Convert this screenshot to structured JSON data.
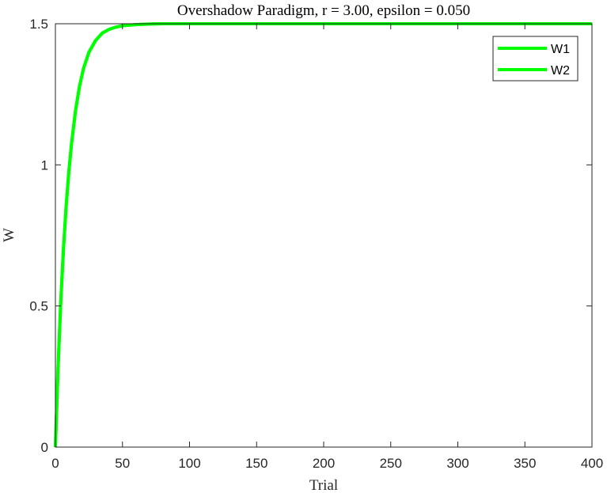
{
  "chart_data": {
    "type": "line",
    "title": "Overshadow Paradigm, r = 3.00, epsilon = 0.050",
    "xlabel": "Trial",
    "ylabel": "W",
    "xlim": [
      0,
      400
    ],
    "ylim": [
      0,
      1.5
    ],
    "x_ticks": [
      0,
      50,
      100,
      150,
      200,
      250,
      300,
      350,
      400
    ],
    "y_ticks": [
      0,
      0.5,
      1,
      1.5
    ],
    "x_tick_labels": [
      "0",
      "50",
      "100",
      "150",
      "200",
      "250",
      "300",
      "350",
      "400"
    ],
    "y_tick_labels": [
      "0",
      "0.5",
      "1",
      "1.5"
    ],
    "grid": false,
    "legend_position": "top-right",
    "series": [
      {
        "name": "W1",
        "color": "#00ff00",
        "x": [
          0,
          2,
          4,
          6,
          8,
          10,
          12,
          15,
          18,
          21,
          25,
          30,
          35,
          40,
          45,
          50,
          60,
          70,
          80,
          100,
          150,
          200,
          250,
          300,
          350,
          400
        ],
        "y": [
          0,
          0.285,
          0.515,
          0.702,
          0.853,
          0.975,
          1.074,
          1.192,
          1.279,
          1.342,
          1.399,
          1.441,
          1.467,
          1.48,
          1.488,
          1.493,
          1.497,
          1.499,
          1.5,
          1.5,
          1.5,
          1.5,
          1.5,
          1.5,
          1.5,
          1.5
        ]
      },
      {
        "name": "W2",
        "color": "#00ff00",
        "x": [
          0,
          2,
          4,
          6,
          8,
          10,
          12,
          15,
          18,
          21,
          25,
          30,
          35,
          40,
          45,
          50,
          60,
          70,
          80,
          100,
          150,
          200,
          250,
          300,
          350,
          400
        ],
        "y": [
          0,
          0.285,
          0.515,
          0.702,
          0.853,
          0.975,
          1.074,
          1.192,
          1.279,
          1.342,
          1.399,
          1.441,
          1.467,
          1.48,
          1.488,
          1.493,
          1.497,
          1.499,
          1.5,
          1.5,
          1.5,
          1.5,
          1.5,
          1.5,
          1.5,
          1.5
        ]
      }
    ]
  }
}
